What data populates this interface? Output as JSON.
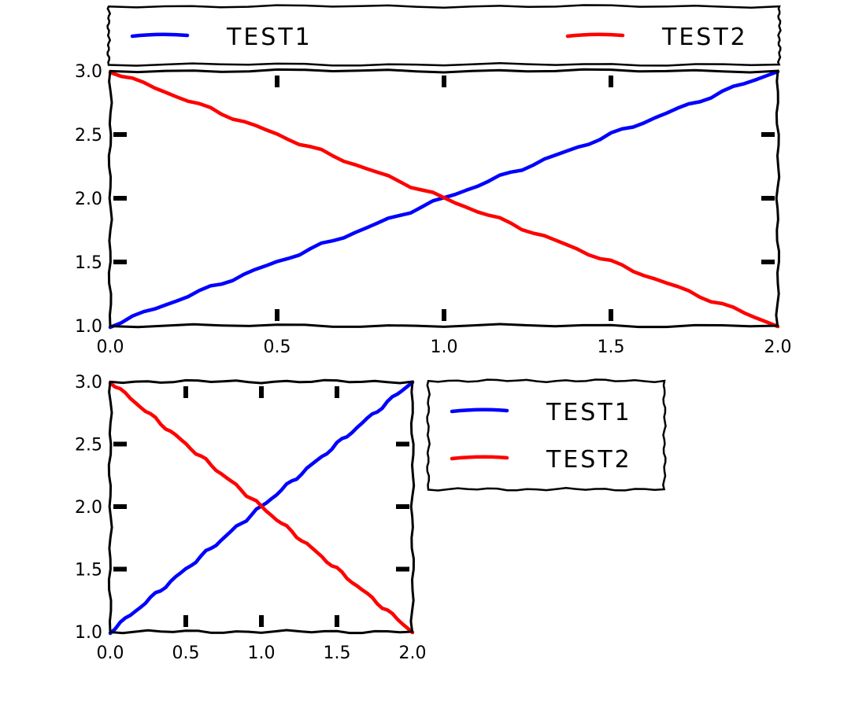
{
  "chart_data": [
    {
      "type": "line",
      "title": "",
      "xlabel": "",
      "ylabel": "",
      "xlim": [
        0.0,
        2.0
      ],
      "ylim": [
        1.0,
        3.0
      ],
      "xticks": [
        0.0,
        0.5,
        1.0,
        1.5,
        2.0
      ],
      "xtick_labels": [
        "0.0",
        "0.5",
        "1.0",
        "1.5",
        "2.0"
      ],
      "yticks": [
        1.0,
        1.5,
        2.0,
        2.5,
        3.0
      ],
      "ytick_labels": [
        "1.0",
        "1.5",
        "2.0",
        "2.5",
        "3.0"
      ],
      "grid": false,
      "legend_placement": "above plot, spanning width",
      "x": [
        0.0,
        0.25,
        0.5,
        0.75,
        1.0,
        1.25,
        1.5,
        1.75,
        2.0
      ],
      "series": [
        {
          "name": "TEST1",
          "color": "#0000ff",
          "values": [
            1.0,
            1.25,
            1.5,
            1.75,
            2.0,
            2.25,
            2.5,
            2.75,
            3.0
          ]
        },
        {
          "name": "TEST2",
          "color": "#ff0000",
          "values": [
            3.0,
            2.75,
            2.5,
            2.25,
            2.0,
            1.75,
            1.5,
            1.25,
            1.0
          ]
        }
      ]
    },
    {
      "type": "line",
      "title": "",
      "xlabel": "",
      "ylabel": "",
      "xlim": [
        0.0,
        2.0
      ],
      "ylim": [
        1.0,
        3.0
      ],
      "xticks": [
        0.0,
        0.5,
        1.0,
        1.5,
        2.0
      ],
      "xtick_labels": [
        "0.0",
        "0.5",
        "1.0",
        "1.5",
        "2.0"
      ],
      "yticks": [
        1.0,
        1.5,
        2.0,
        2.5,
        3.0
      ],
      "ytick_labels": [
        "1.0",
        "1.5",
        "2.0",
        "2.5",
        "3.0"
      ],
      "grid": false,
      "legend_placement": "right of plot",
      "x": [
        0.0,
        0.25,
        0.5,
        0.75,
        1.0,
        1.25,
        1.5,
        1.75,
        2.0
      ],
      "series": [
        {
          "name": "TEST1",
          "color": "#0000ff",
          "values": [
            1.0,
            1.25,
            1.5,
            1.75,
            2.0,
            2.25,
            2.5,
            2.75,
            3.0
          ]
        },
        {
          "name": "TEST2",
          "color": "#ff0000",
          "values": [
            3.0,
            2.75,
            2.5,
            2.25,
            2.0,
            1.75,
            1.5,
            1.25,
            1.0
          ]
        }
      ]
    }
  ]
}
